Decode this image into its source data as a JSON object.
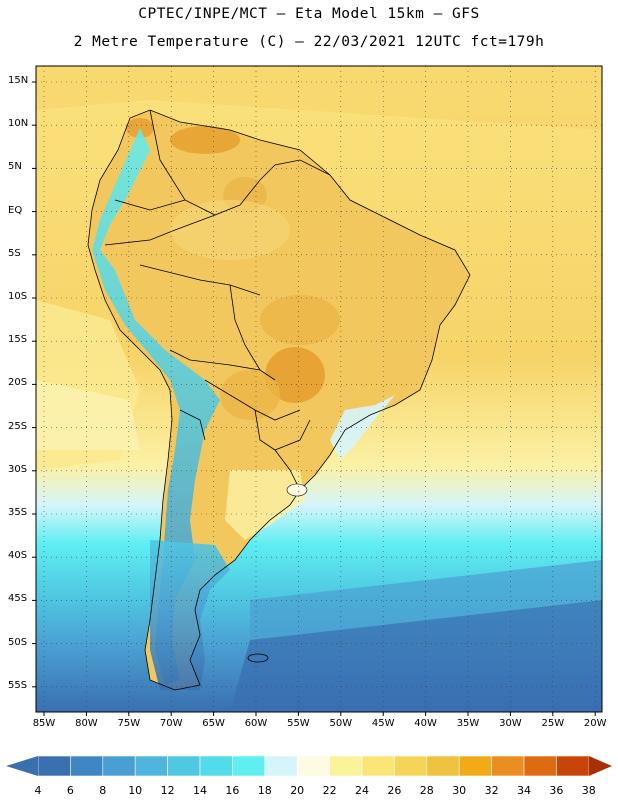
{
  "header": {
    "line1": "CPTEC/INPE/MCT –  Eta Model 15km – GFS",
    "line2": "2 Metre Temperature (C) – 22/03/2021 12UTC fct=179h"
  },
  "axes": {
    "lat_labels": [
      "15N",
      "10N",
      "5N",
      "EQ",
      "5S",
      "10S",
      "15S",
      "20S",
      "25S",
      "30S",
      "35S",
      "40S",
      "45S",
      "50S",
      "55S"
    ],
    "lon_labels": [
      "85W",
      "80W",
      "75W",
      "70W",
      "65W",
      "60W",
      "55W",
      "50W",
      "45W",
      "40W",
      "35W",
      "30W",
      "25W",
      "20W"
    ]
  },
  "colorbar": {
    "ticks": [
      "4",
      "6",
      "8",
      "10",
      "12",
      "14",
      "16",
      "18",
      "20",
      "22",
      "24",
      "26",
      "28",
      "30",
      "32",
      "34",
      "36",
      "38"
    ],
    "colors": [
      "#3a6fb0",
      "#3f86c4",
      "#4a9fd2",
      "#4fb5dc",
      "#4fc8e2",
      "#52dbe8",
      "#5feef2",
      "#d5f5fb",
      "#fdfbe3",
      "#fbf39a",
      "#fbe577",
      "#f5d458",
      "#efc23f",
      "#f0ab16",
      "#eb8e22",
      "#de6a12",
      "#c84408"
    ]
  },
  "palette": {
    "ocean_warm": "#f8d870",
    "ocean_mild": "#fbe68a",
    "land_warm": "#f0c860",
    "land_hot": "#e6a030",
    "cool_band": "#d5f5fb",
    "cyan": "#5feef2",
    "blue_mid": "#4fb5dc",
    "blue_deep": "#3a6fb0",
    "border": "#000000"
  }
}
